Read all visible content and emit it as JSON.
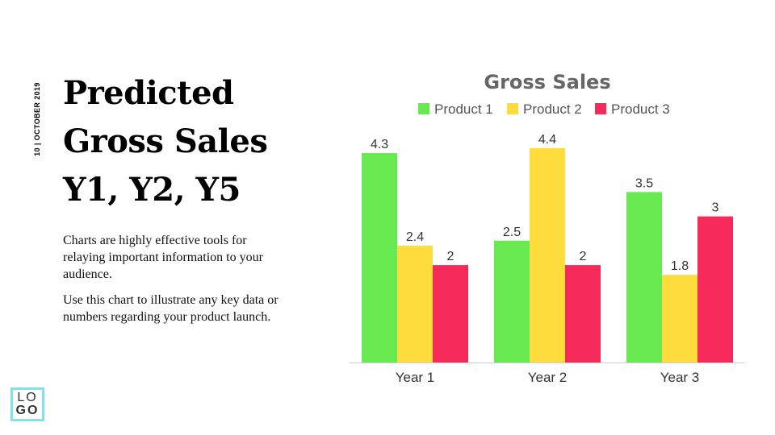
{
  "slide": {
    "date": "10 | OCTOBER 2019",
    "title_lines": [
      "Predicted",
      "Gross Sales",
      "Y1, Y2, Y5"
    ],
    "paragraphs": [
      "Charts are highly effective tools for relaying important information to your audience.",
      "Use this chart to illustrate any key data or numbers regarding your product launch."
    ],
    "logo": {
      "line1": "LO",
      "line2": "GO",
      "border_color": "#7fe3ea"
    }
  },
  "chart_data": {
    "type": "bar",
    "title": "Gross Sales",
    "categories": [
      "Year 1",
      "Year 2",
      "Year 3"
    ],
    "series": [
      {
        "name": "Product 1",
        "values": [
          4.3,
          2.5,
          3.5
        ],
        "color": "#66ea4f"
      },
      {
        "name": "Product 2",
        "values": [
          2.4,
          4.4,
          1.8
        ],
        "color": "#ffdc3d"
      },
      {
        "name": "Product 3",
        "values": [
          2,
          2,
          3
        ],
        "color": "#f52a5a"
      }
    ],
    "ylim": [
      0,
      4.4
    ],
    "grid": false,
    "legend": "top",
    "data_labels": true
  }
}
